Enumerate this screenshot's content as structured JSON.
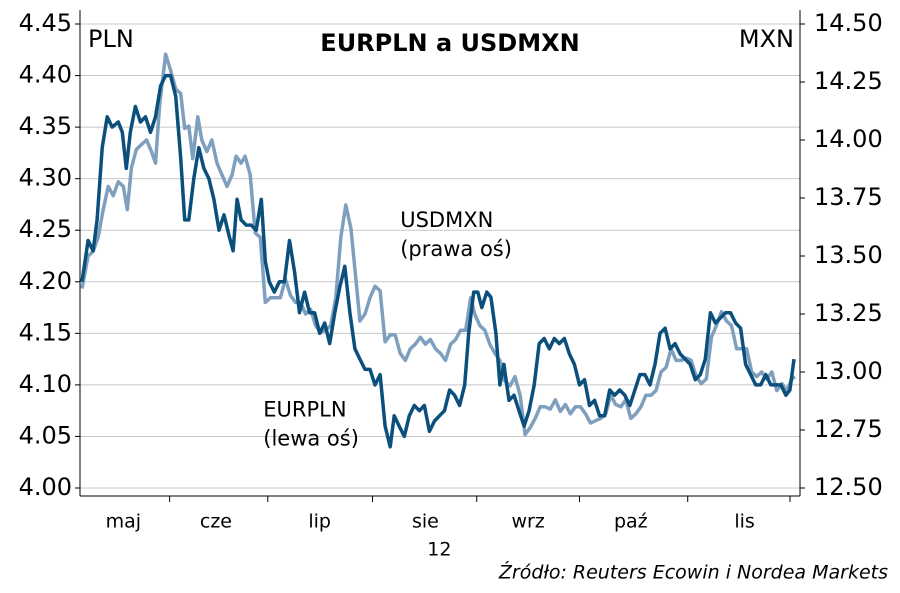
{
  "chart_data": {
    "type": "line",
    "title": "EURPLN a USDMXN",
    "y_label": "PLN",
    "y2_label": "MXN",
    "source": "Źródło: Reuters Ecowin i Nordea Markets",
    "year_label": "12",
    "annotations": [
      {
        "lines": [
          "USDMXN",
          "(prawa oś)"
        ],
        "x": 318,
        "y": 13.65,
        "axis": "y2"
      },
      {
        "lines": [
          "EURPLN",
          "(lewa oś)"
        ],
        "x": 182,
        "y": 4.075
      }
    ],
    "xlim": [
      0,
      715
    ],
    "xticks": [
      {
        "value": 43,
        "label": "maj"
      },
      {
        "value": 135,
        "label": "cze"
      },
      {
        "value": 238,
        "label": "lip"
      },
      {
        "value": 343,
        "label": "sie"
      },
      {
        "value": 445,
        "label": "wrz"
      },
      {
        "value": 547,
        "label": "paź"
      },
      {
        "value": 660,
        "label": "lis"
      }
    ],
    "ylim": [
      4.0,
      4.45
    ],
    "yticks": [
      {
        "value": 4.0,
        "label": "4.00"
      },
      {
        "value": 4.05,
        "label": "4.05"
      },
      {
        "value": 4.1,
        "label": "4.10"
      },
      {
        "value": 4.15,
        "label": "4.15"
      },
      {
        "value": 4.2,
        "label": "4.20"
      },
      {
        "value": 4.25,
        "label": "4.25"
      },
      {
        "value": 4.3,
        "label": "4.30"
      },
      {
        "value": 4.35,
        "label": "4.35"
      },
      {
        "value": 4.4,
        "label": "4.40"
      },
      {
        "value": 4.45,
        "label": "4.45"
      }
    ],
    "y2lim": [
      12.5,
      14.5
    ],
    "y2ticks": [
      {
        "value": 12.5,
        "label": "12.50"
      },
      {
        "value": 12.75,
        "label": "12.75"
      },
      {
        "value": 13.0,
        "label": "13.00"
      },
      {
        "value": 13.25,
        "label": "13.25"
      },
      {
        "value": 13.5,
        "label": "13.50"
      },
      {
        "value": 13.75,
        "label": "13.75"
      },
      {
        "value": 14.0,
        "label": "14.00"
      },
      {
        "value": 14.25,
        "label": "14.25"
      },
      {
        "value": 14.5,
        "label": "14.50"
      }
    ],
    "grid": true,
    "series": [
      {
        "name": "USDMXN",
        "color": "#7f9fbf",
        "axis": "y2",
        "x": [
          2,
          8,
          13,
          18,
          23,
          28,
          33,
          38,
          43,
          47,
          51,
          56,
          61,
          66,
          71,
          75,
          79,
          85,
          90,
          95,
          100,
          104,
          108,
          112,
          117,
          121,
          126,
          131,
          136,
          141,
          146,
          151,
          155,
          160,
          164,
          169,
          174,
          179,
          184,
          189,
          194,
          199,
          204,
          209,
          214,
          219,
          224,
          229,
          234,
          239,
          244,
          249,
          254,
          259,
          264,
          269,
          274,
          278,
          283,
          288,
          293,
          298,
          303,
          308,
          313,
          318,
          323,
          328,
          333,
          338,
          343,
          348,
          353,
          358,
          363,
          368,
          373,
          378,
          383,
          388,
          392,
          397,
          402,
          407,
          412,
          417,
          422,
          427,
          432,
          437,
          442,
          447,
          452,
          457,
          462,
          467,
          472,
          477,
          482,
          487,
          492,
          497,
          502,
          507,
          512,
          517,
          522,
          527,
          532,
          537,
          542,
          547,
          552,
          557,
          562,
          567,
          572,
          577,
          582,
          587,
          592,
          597,
          602,
          607,
          612,
          617,
          622,
          627,
          632,
          637,
          642,
          647,
          652,
          657,
          662,
          667,
          672,
          677,
          682,
          687,
          692,
          697,
          702,
          707,
          710
        ],
        "values": [
          13.36,
          13.5,
          13.52,
          13.58,
          13.7,
          13.8,
          13.76,
          13.82,
          13.8,
          13.7,
          13.88,
          13.96,
          13.98,
          14.0,
          13.95,
          13.9,
          14.15,
          14.37,
          14.3,
          14.22,
          14.2,
          14.05,
          14.06,
          13.92,
          14.1,
          14.0,
          13.95,
          14.0,
          13.9,
          13.85,
          13.8,
          13.85,
          13.93,
          13.9,
          13.93,
          13.85,
          13.6,
          13.58,
          13.3,
          13.32,
          13.32,
          13.32,
          13.4,
          13.33,
          13.3,
          13.3,
          13.25,
          13.27,
          13.2,
          13.17,
          13.18,
          13.2,
          13.32,
          13.58,
          13.72,
          13.62,
          13.4,
          13.22,
          13.25,
          13.32,
          13.37,
          13.35,
          13.13,
          13.16,
          13.16,
          13.08,
          13.05,
          13.1,
          13.12,
          13.15,
          13.12,
          13.14,
          13.1,
          13.08,
          13.05,
          13.12,
          13.14,
          13.18,
          13.18,
          13.32,
          13.25,
          13.2,
          13.18,
          13.12,
          13.08,
          13.05,
          12.96,
          12.94,
          12.98,
          12.9,
          12.73,
          12.76,
          12.8,
          12.85,
          12.85,
          12.84,
          12.88,
          12.83,
          12.86,
          12.82,
          12.85,
          12.85,
          12.82,
          12.78,
          12.79,
          12.8,
          12.82,
          12.9,
          12.86,
          12.85,
          12.88,
          12.8,
          12.82,
          12.85,
          12.9,
          12.9,
          12.92,
          13.0,
          13.02,
          13.1,
          13.05,
          13.05,
          13.06,
          13.05,
          12.98,
          12.95,
          12.97,
          13.15,
          13.2,
          13.26,
          13.22,
          13.2,
          13.1,
          13.1,
          13.1,
          13.0,
          12.98,
          13.0,
          12.97,
          13.0,
          12.92,
          12.95,
          12.92,
          12.97,
          12.98
        ]
      },
      {
        "name": "EURPLN",
        "color": "#0b4f7c",
        "x": [
          2,
          8,
          13,
          17,
          22,
          27,
          32,
          38,
          42,
          46,
          50,
          55,
          60,
          65,
          70,
          75,
          80,
          85,
          90,
          95,
          100,
          104,
          108,
          113,
          118,
          123,
          128,
          133,
          138,
          143,
          148,
          152,
          156,
          160,
          165,
          170,
          175,
          180,
          184,
          188,
          193,
          198,
          203,
          208,
          213,
          218,
          223,
          228,
          233,
          238,
          243,
          248,
          253,
          258,
          263,
          268,
          273,
          278,
          283,
          288,
          293,
          298,
          303,
          308,
          312,
          317,
          322,
          327,
          332,
          337,
          342,
          347,
          352,
          357,
          362,
          367,
          372,
          377,
          382,
          386,
          391,
          395,
          399,
          404,
          408,
          413,
          417,
          421,
          426,
          431,
          436,
          441,
          446,
          451,
          456,
          461,
          466,
          471,
          476,
          481,
          486,
          491,
          496,
          501,
          506,
          511,
          516,
          521,
          526,
          531,
          536,
          541,
          546,
          551,
          556,
          561,
          566,
          571,
          576,
          581,
          586,
          591,
          596,
          601,
          606,
          611,
          616,
          621,
          626,
          631,
          636,
          641,
          646,
          651,
          656,
          661,
          666,
          671,
          676,
          681,
          686,
          691,
          696,
          701,
          705,
          709
        ],
        "values": [
          4.2,
          4.24,
          4.23,
          4.26,
          4.33,
          4.36,
          4.35,
          4.355,
          4.345,
          4.31,
          4.345,
          4.37,
          4.355,
          4.36,
          4.345,
          4.36,
          4.39,
          4.4,
          4.4,
          4.38,
          4.32,
          4.26,
          4.26,
          4.3,
          4.33,
          4.31,
          4.3,
          4.28,
          4.25,
          4.265,
          4.245,
          4.23,
          4.28,
          4.26,
          4.255,
          4.255,
          4.25,
          4.28,
          4.22,
          4.2,
          4.19,
          4.2,
          4.2,
          4.24,
          4.21,
          4.17,
          4.19,
          4.17,
          4.17,
          4.15,
          4.16,
          4.14,
          4.17,
          4.195,
          4.215,
          4.17,
          4.135,
          4.125,
          4.115,
          4.115,
          4.1,
          4.11,
          4.06,
          4.04,
          4.07,
          4.06,
          4.05,
          4.07,
          4.08,
          4.075,
          4.08,
          4.055,
          4.065,
          4.07,
          4.075,
          4.095,
          4.09,
          4.08,
          4.1,
          4.15,
          4.19,
          4.19,
          4.175,
          4.19,
          4.185,
          4.15,
          4.1,
          4.12,
          4.085,
          4.09,
          4.075,
          4.06,
          4.075,
          4.1,
          4.14,
          4.145,
          4.135,
          4.145,
          4.14,
          4.145,
          4.13,
          4.12,
          4.1,
          4.105,
          4.08,
          4.085,
          4.07,
          4.07,
          4.095,
          4.09,
          4.095,
          4.09,
          4.08,
          4.095,
          4.11,
          4.11,
          4.1,
          4.12,
          4.15,
          4.155,
          4.135,
          4.14,
          4.13,
          4.125,
          4.12,
          4.105,
          4.11,
          4.125,
          4.17,
          4.16,
          4.165,
          4.17,
          4.17,
          4.16,
          4.155,
          4.12,
          4.11,
          4.1,
          4.1,
          4.11,
          4.1,
          4.1,
          4.1,
          4.09,
          4.095,
          4.125
        ]
      }
    ]
  }
}
